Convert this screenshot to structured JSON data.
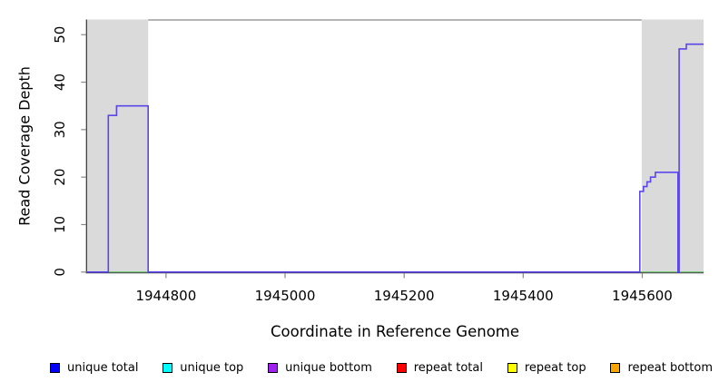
{
  "chart_data": {
    "type": "line",
    "title": "",
    "xlabel": "Coordinate in Reference Genome",
    "ylabel": "Read Coverage Depth",
    "xlim": [
      1944666,
      1945703
    ],
    "ylim": [
      0,
      53.1
    ],
    "x_ticks": [
      1944800,
      1945000,
      1945200,
      1945400,
      1945600
    ],
    "y_ticks": [
      0,
      10,
      20,
      30,
      40,
      50
    ],
    "grid": false,
    "legend_position": "bottom",
    "shaded_regions": [
      {
        "name": "repeat-region-left",
        "x0": 1944666,
        "x1": 1944770,
        "color": "#DADADA"
      },
      {
        "name": "repeat-region-right",
        "x0": 1945599,
        "x1": 1945703,
        "color": "#DADADA"
      }
    ],
    "series": [
      {
        "name": "unique bottom coverage (step line)",
        "color": "#5B46EA",
        "points": [
          [
            1944666,
            0
          ],
          [
            1944703,
            0
          ],
          [
            1944703,
            33
          ],
          [
            1944717,
            33
          ],
          [
            1944717,
            35
          ],
          [
            1944770,
            35
          ],
          [
            1944770,
            0
          ],
          [
            1945596,
            0
          ],
          [
            1945596,
            17
          ],
          [
            1945602,
            17
          ],
          [
            1945602,
            18
          ],
          [
            1945608,
            18
          ],
          [
            1945608,
            19
          ],
          [
            1945614,
            19
          ],
          [
            1945614,
            20
          ],
          [
            1945622,
            20
          ],
          [
            1945622,
            21
          ],
          [
            1945660,
            21
          ],
          [
            1945660,
            0
          ],
          [
            1945662,
            0
          ],
          [
            1945662,
            47
          ],
          [
            1945674,
            47
          ],
          [
            1945674,
            48
          ],
          [
            1945703,
            48
          ]
        ]
      },
      {
        "name": "zero-depth baseline (top-strand series)",
        "color": "#7CC87D",
        "y": 0,
        "segments": [
          [
            1944703,
            1944770
          ],
          [
            1945596,
            1945703
          ]
        ]
      }
    ]
  },
  "legend": {
    "items": [
      {
        "label": "unique total",
        "color": "#0000FF"
      },
      {
        "label": "unique top",
        "color": "#00FFFF"
      },
      {
        "label": "unique bottom",
        "color": "#A020F0"
      },
      {
        "label": "repeat total",
        "color": "#FF0000"
      },
      {
        "label": "repeat top",
        "color": "#FFFF00"
      },
      {
        "label": "repeat bottom",
        "color": "#FFA500"
      }
    ]
  },
  "colors": {
    "background": "#FFFFFF",
    "shade": "#DADADA",
    "coverage_line": "#5B46EA",
    "baseline_green": "#7CC87D",
    "axis_line": "#333333",
    "tick": "#888888",
    "top_border": "#888888",
    "text": "#000000"
  }
}
